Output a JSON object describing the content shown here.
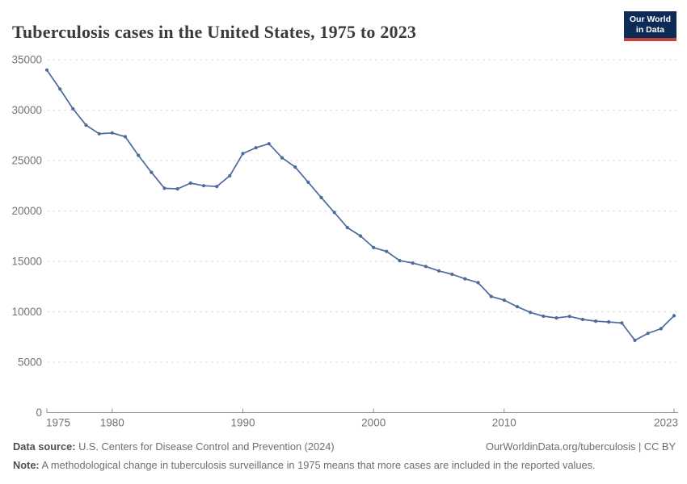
{
  "header": {
    "title": "Tuberculosis cases in the United States, 1975 to 2023",
    "logo_line1": "Our World",
    "logo_line2": "in Data",
    "logo_bg_color": "#0d2b57",
    "logo_bar_color": "#c5403c"
  },
  "chart_data": {
    "type": "line",
    "title": "Tuberculosis cases in the United States, 1975 to 2023",
    "xlabel": "",
    "ylabel": "",
    "grid": "horizontal-dashed",
    "legend": "none",
    "line_color": "#4C6A9C",
    "ylim": [
      0,
      35000
    ],
    "yticks": [
      0,
      5000,
      10000,
      15000,
      20000,
      25000,
      30000,
      35000
    ],
    "xticks": [
      1975,
      1980,
      1990,
      2000,
      2010,
      2023
    ],
    "x": [
      1975,
      1976,
      1977,
      1978,
      1979,
      1980,
      1981,
      1982,
      1983,
      1984,
      1985,
      1986,
      1987,
      1988,
      1989,
      1990,
      1991,
      1992,
      1993,
      1994,
      1995,
      1996,
      1997,
      1998,
      1999,
      2000,
      2001,
      2002,
      2003,
      2004,
      2005,
      2006,
      2007,
      2008,
      2009,
      2010,
      2011,
      2012,
      2013,
      2014,
      2015,
      2016,
      2017,
      2018,
      2019,
      2020,
      2021,
      2022,
      2023
    ],
    "values": [
      33989,
      32105,
      30145,
      28521,
      27669,
      27749,
      27373,
      25520,
      23846,
      22255,
      22201,
      22768,
      22517,
      22436,
      23495,
      25701,
      26283,
      26673,
      25287,
      24361,
      22860,
      21337,
      19855,
      18361,
      17531,
      16377,
      15989,
      15075,
      14835,
      14499,
      14065,
      13728,
      13281,
      12895,
      11523,
      11161,
      10510,
      9941,
      9561,
      9398,
      9547,
      9242,
      9077,
      8996,
      8895,
      7171,
      7866,
      8320,
      9615
    ]
  },
  "footer": {
    "source_label": "Data source:",
    "source_text": " U.S. Centers for Disease Control and Prevention (2024)",
    "link": "OurWorldinData.org/tuberculosis | CC BY",
    "note_label": "Note:",
    "note_text": " A methodological change in tuberculosis surveillance in 1975 means that more cases are included in the reported values."
  }
}
